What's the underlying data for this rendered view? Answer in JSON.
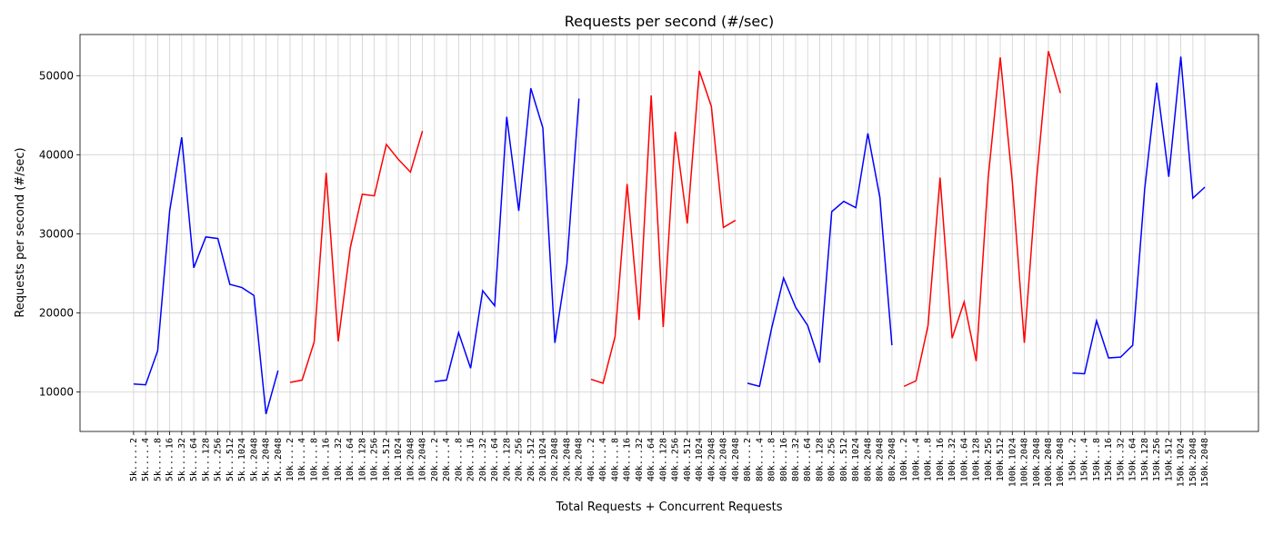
{
  "chart_data": {
    "type": "line",
    "title": "Requests per second (#/sec)",
    "ylabel": "Requests per second (#/sec)",
    "xlabel": "Total Requests + Concurrent Requests",
    "categories": [
      "5k.....2",
      "5k.....4",
      "5k.....8",
      "5k....16",
      "5k....32",
      "5k....64",
      "5k...128",
      "5k...256",
      "5k...512",
      "5k..1024",
      "5k..2048",
      "5k..2048",
      "5k..2048",
      "10k....2",
      "10k....4",
      "10k....8",
      "10k...16",
      "10k...32",
      "10k...64",
      "10k..128",
      "10k..256",
      "10k..512",
      "10k.1024",
      "10k.2048",
      "10k.2048",
      "20k....2",
      "20k....4",
      "20k....8",
      "20k...16",
      "20k...32",
      "20k...64",
      "20k..128",
      "20k..256",
      "20k..512",
      "20k.1024",
      "20k.2048",
      "20k.2048",
      "20k.2048",
      "40k....2",
      "40k....4",
      "40k....8",
      "40k...16",
      "40k...32",
      "40k...64",
      "40k..128",
      "40k..256",
      "40k..512",
      "40k.1024",
      "40k.2048",
      "40k.2048",
      "40k.2048",
      "80k....2",
      "80k....4",
      "80k....8",
      "80k...16",
      "80k...32",
      "80k...64",
      "80k..128",
      "80k..256",
      "80k..512",
      "80k.1024",
      "80k.2048",
      "80k.2048",
      "80k.2048",
      "100k...2",
      "100k...4",
      "100k...8",
      "100k..16",
      "100k..32",
      "100k..64",
      "100k.128",
      "100k.256",
      "100k.512",
      "100k.1024",
      "100k.2048",
      "100k.2048",
      "100k.2048",
      "100k.2048",
      "150k...2",
      "150k...4",
      "150k...8",
      "150k..16",
      "150k..32",
      "150k..64",
      "150k.128",
      "150k.256",
      "150k.512",
      "150k.1024",
      "150k.2048",
      "150k.2048"
    ],
    "series": [
      {
        "color": "#0000ff",
        "values": [
          11000,
          10900,
          15200,
          32900,
          42200,
          25700,
          29600,
          29400,
          23600,
          23200,
          22200,
          7200,
          12700,
          null,
          null,
          null,
          null,
          null,
          null,
          null,
          null,
          null,
          null,
          null,
          null,
          11300,
          11500,
          17500,
          13000,
          22800,
          20900,
          44800,
          32900,
          48400,
          43400,
          16200,
          26200,
          47100,
          null,
          null,
          null,
          null,
          null,
          null,
          null,
          null,
          null,
          null,
          null,
          null,
          null,
          11100,
          10700,
          18000,
          24400,
          20700,
          18400,
          13700,
          32800,
          34100,
          33300,
          42700,
          34600,
          15900,
          null,
          null,
          null,
          null,
          null,
          null,
          null,
          null,
          null,
          null,
          null,
          null,
          null,
          null,
          12400,
          12300,
          19000,
          14300,
          14400,
          15900,
          35700,
          49100,
          37200,
          52400,
          34500,
          35900
        ]
      },
      {
        "color": "#ff0000",
        "values": [
          null,
          null,
          null,
          null,
          null,
          null,
          null,
          null,
          null,
          null,
          null,
          null,
          null,
          11200,
          11500,
          16300,
          37700,
          16400,
          28200,
          35000,
          34800,
          41300,
          39400,
          37800,
          43000,
          null,
          null,
          null,
          null,
          null,
          null,
          null,
          null,
          null,
          null,
          null,
          null,
          null,
          11600,
          11100,
          17000,
          36300,
          19100,
          47500,
          18200,
          42900,
          31300,
          50600,
          46100,
          30800,
          31700,
          null,
          null,
          null,
          null,
          null,
          null,
          null,
          null,
          null,
          null,
          null,
          null,
          null,
          10700,
          11400,
          18400,
          37100,
          16800,
          21400,
          13900,
          37100,
          52300,
          36600,
          16200,
          36600,
          53100,
          47800,
          null,
          null,
          null,
          null,
          null,
          null,
          null,
          null,
          null,
          null,
          null,
          null
        ]
      }
    ],
    "ylim": [
      5000,
      55200
    ],
    "yticks": [
      10000,
      20000,
      30000,
      40000,
      50000
    ],
    "grid": true
  }
}
